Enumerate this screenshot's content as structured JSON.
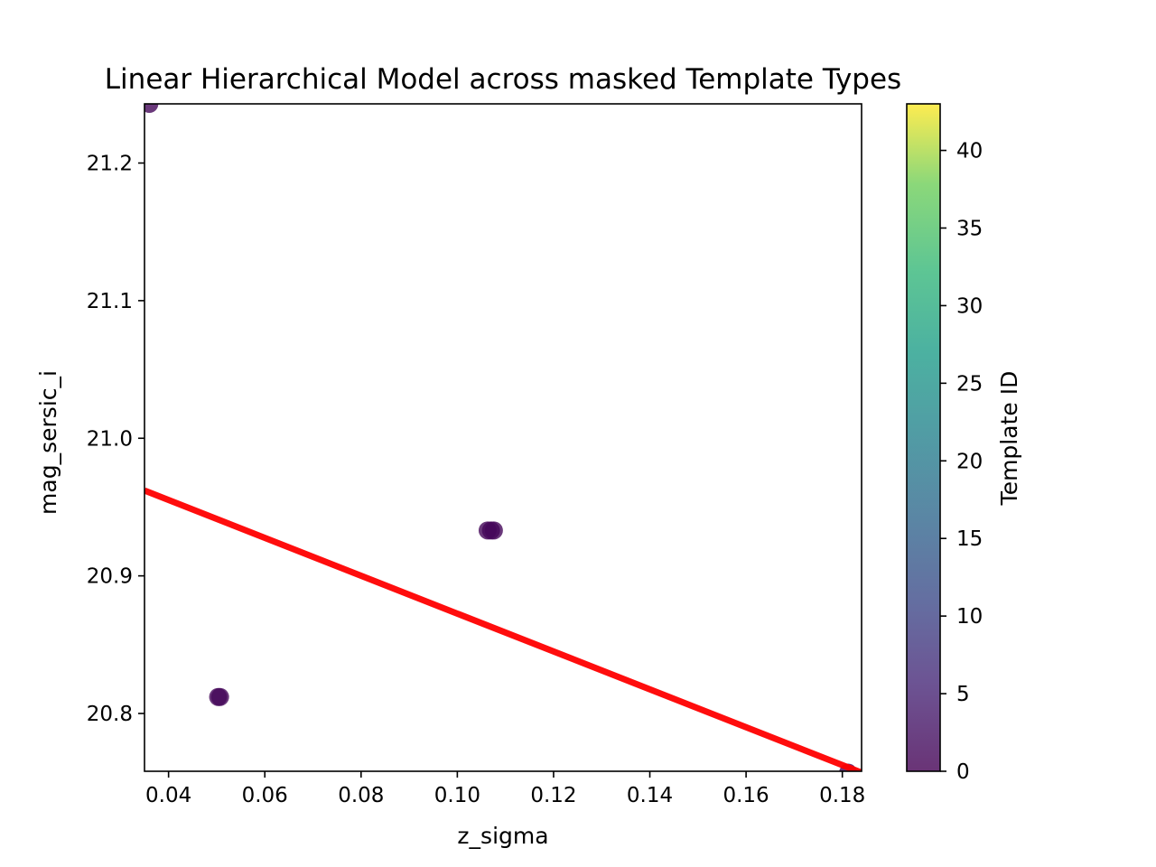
{
  "chart_data": {
    "type": "scatter",
    "title": "Linear Hierarchical Model across masked Template Types",
    "xlabel": "z_sigma",
    "ylabel": "mag_sersic_i",
    "xlim": [
      0.035,
      0.184
    ],
    "ylim": [
      20.758,
      21.243
    ],
    "x_ticks": [
      0.04,
      0.06,
      0.08,
      0.1,
      0.12,
      0.14,
      0.16,
      0.18
    ],
    "x_tick_labels": [
      "0.04",
      "0.06",
      "0.08",
      "0.10",
      "0.12",
      "0.14",
      "0.16",
      "0.18"
    ],
    "y_ticks": [
      20.8,
      20.9,
      21.0,
      21.1,
      21.2
    ],
    "y_tick_labels": [
      "20.8",
      "20.9",
      "21.0",
      "21.1",
      "21.2"
    ],
    "points": [
      {
        "x": 0.036,
        "y": 21.243,
        "template_id": 1
      },
      {
        "x": 0.0503,
        "y": 20.812,
        "template_id": 1
      },
      {
        "x": 0.0507,
        "y": 20.812,
        "template_id": 1
      },
      {
        "x": 0.1063,
        "y": 20.933,
        "template_id": 1
      },
      {
        "x": 0.107,
        "y": 20.933,
        "template_id": 1
      },
      {
        "x": 0.1076,
        "y": 20.933,
        "template_id": 1
      },
      {
        "x": 0.1812,
        "y": 20.757,
        "template_id": 1
      }
    ],
    "fit_line": {
      "color": "#ff0000",
      "x": [
        0.035,
        0.184
      ],
      "y": [
        20.962,
        20.757
      ]
    },
    "colorbar": {
      "label": "Template ID",
      "colormap": "viridis",
      "range": [
        0,
        43
      ],
      "ticks": [
        0,
        5,
        10,
        15,
        20,
        25,
        30,
        35,
        40
      ],
      "tick_labels": [
        "0",
        "5",
        "10",
        "15",
        "20",
        "25",
        "30",
        "35",
        "40"
      ]
    },
    "grid": false,
    "legend": "none"
  }
}
